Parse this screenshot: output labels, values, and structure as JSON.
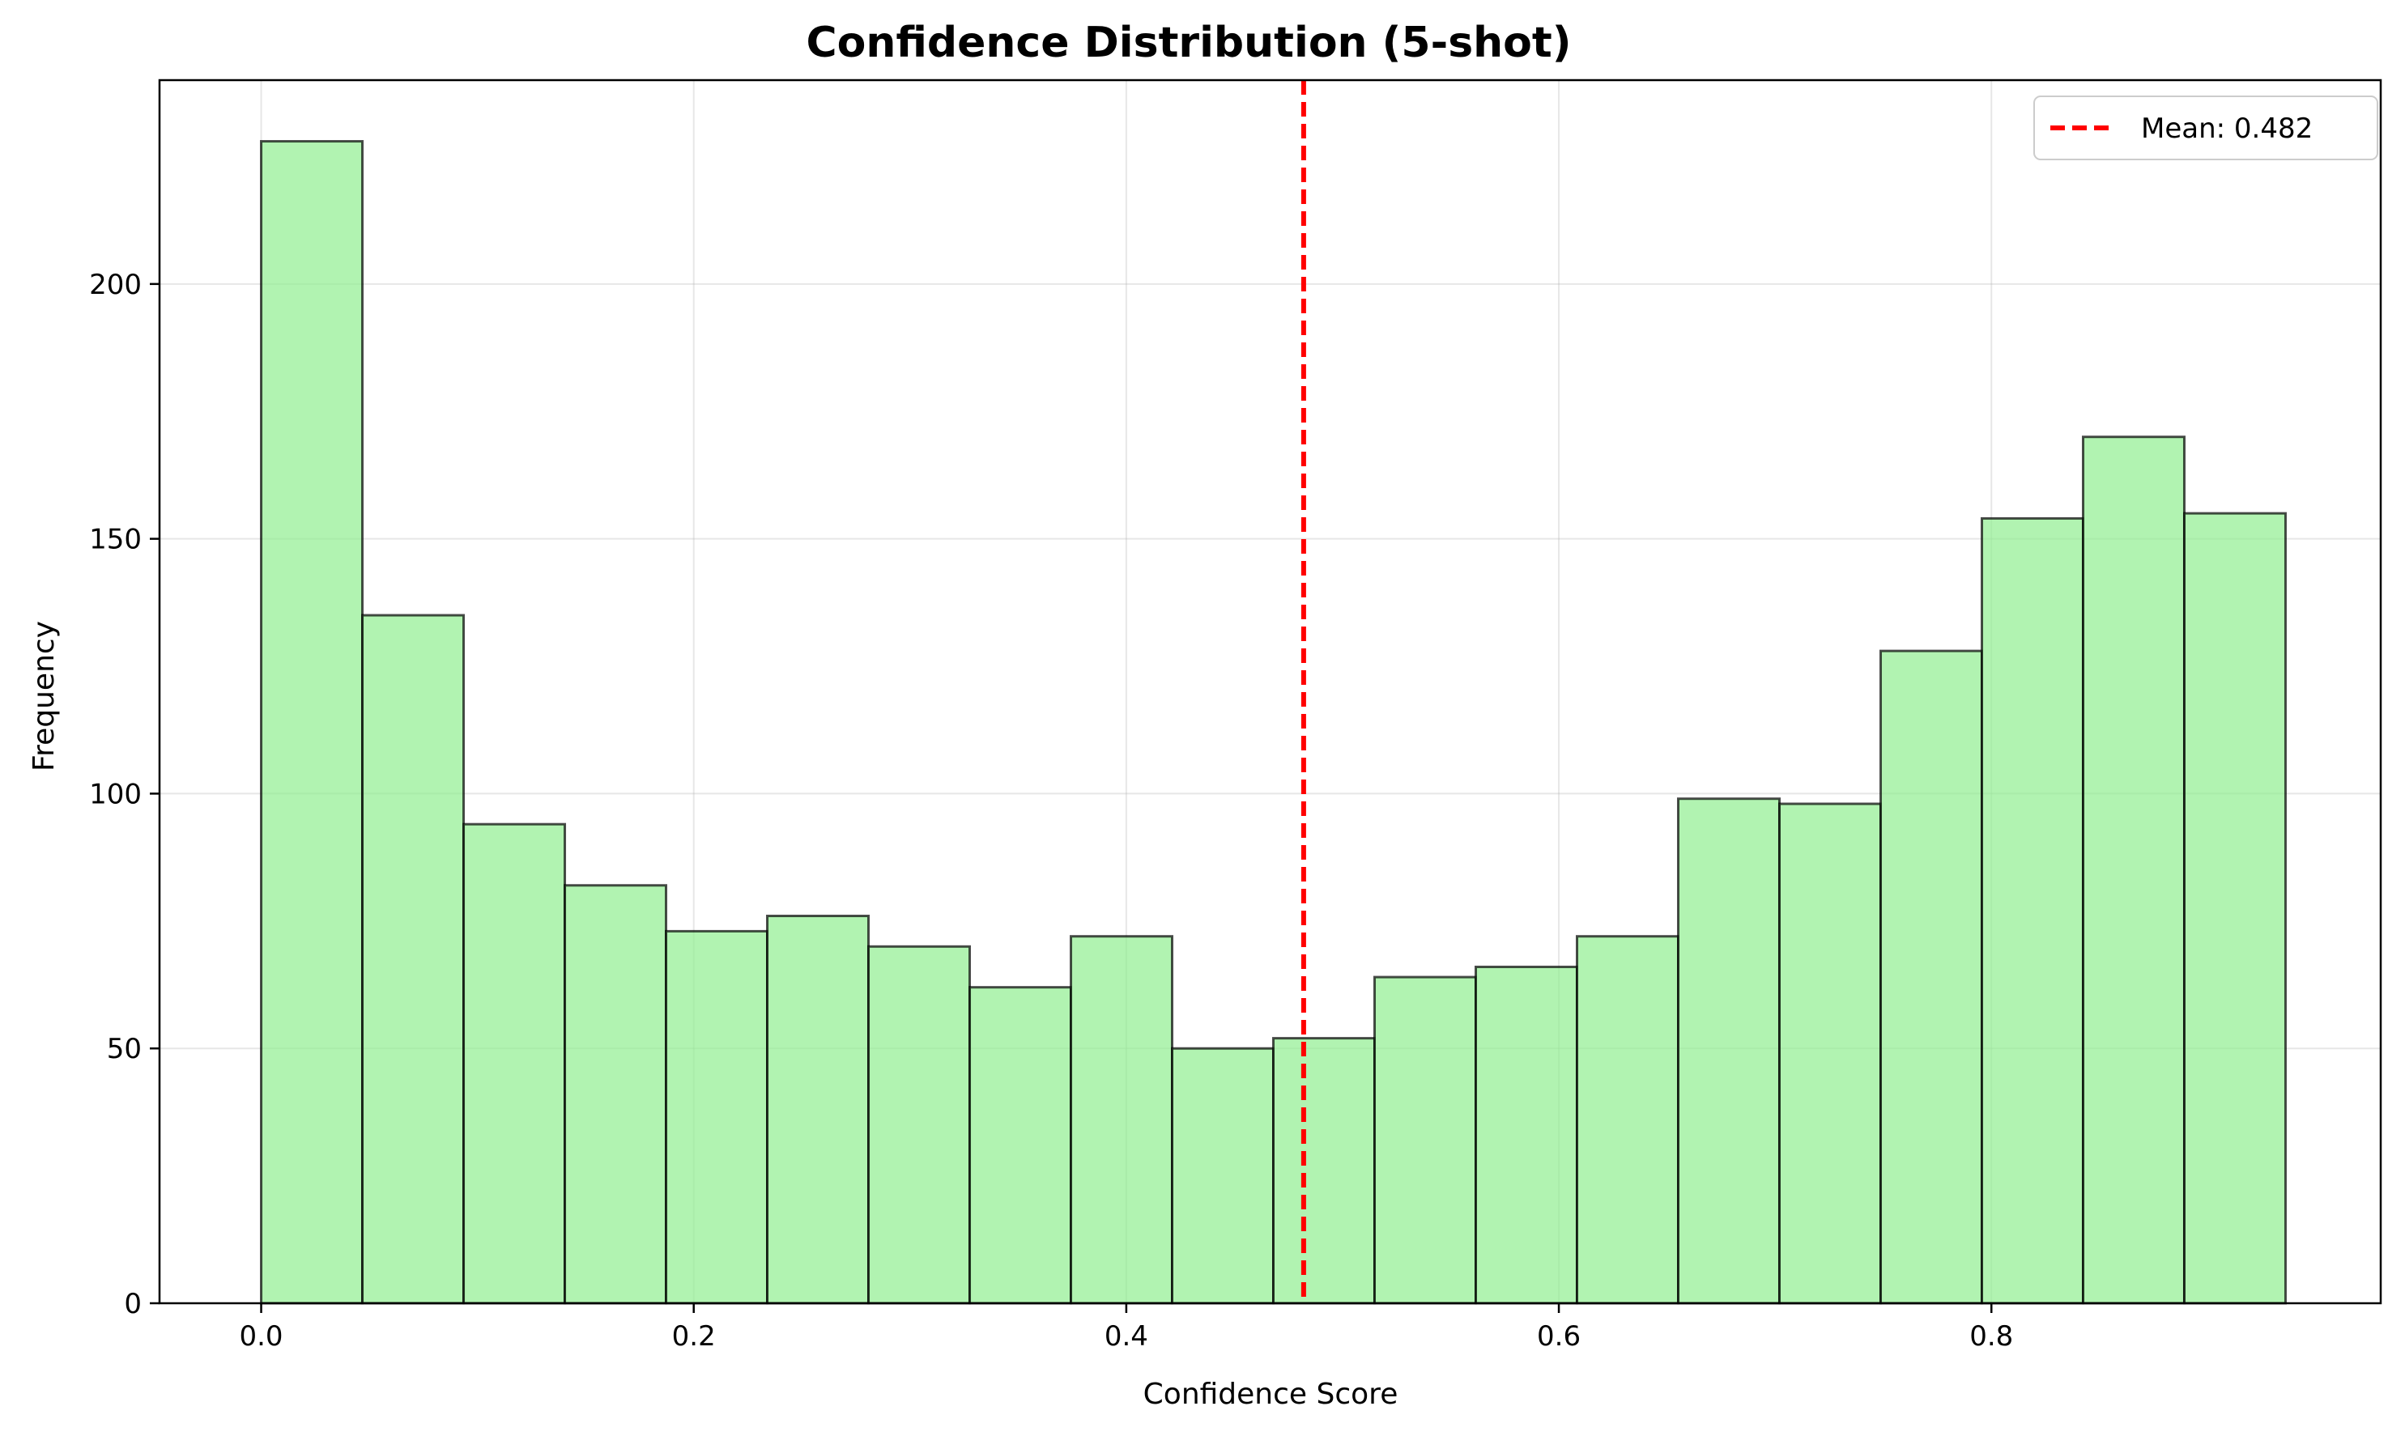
{
  "chart_data": {
    "type": "bar",
    "title": "Confidence Distribution (5-shot)",
    "xlabel": "Confidence Score",
    "ylabel": "Frequency",
    "xlim": [
      -0.047,
      0.98
    ],
    "ylim": [
      0,
      240
    ],
    "xticks": [
      0.0,
      0.2,
      0.4,
      0.6,
      0.8
    ],
    "xtick_labels": [
      "0.0",
      "0.2",
      "0.4",
      "0.6",
      "0.8"
    ],
    "yticks": [
      0,
      50,
      100,
      150,
      200
    ],
    "ytick_labels": [
      "0",
      "50",
      "100",
      "150",
      "200"
    ],
    "grid": true,
    "bin_edges": [
      0.0,
      0.0468,
      0.0936,
      0.1404,
      0.1872,
      0.234,
      0.2808,
      0.3276,
      0.3744,
      0.4212,
      0.468,
      0.5148,
      0.5616,
      0.6084,
      0.6552,
      0.702,
      0.7488,
      0.7956,
      0.8424,
      0.8892,
      0.936
    ],
    "values": [
      228,
      135,
      94,
      82,
      73,
      76,
      70,
      62,
      72,
      50,
      52,
      64,
      66,
      72,
      99,
      98,
      128,
      154,
      170,
      155
    ],
    "bar_color": "#90ee90",
    "bar_edge_color": "#000000",
    "mean": 0.482,
    "mean_line_color": "#ff0000",
    "legend": {
      "placement": "top-right",
      "entries": [
        "Mean: 0.482"
      ]
    }
  }
}
